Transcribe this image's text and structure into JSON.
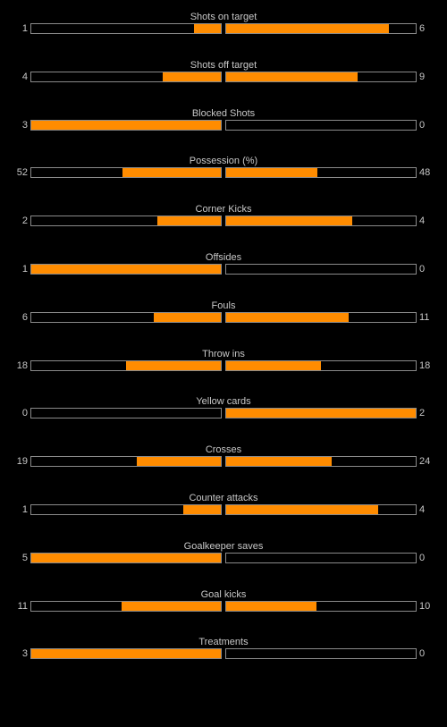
{
  "theme": {
    "background": "#000000",
    "text": "#c8c8c8",
    "bar_border": "#8a8a8a",
    "bar_fill": "#ff8c00"
  },
  "stats": [
    {
      "name": "shots-on-target",
      "label": "Shots on target",
      "home": "1",
      "away": "6",
      "home_share": 0.143,
      "away_share": 0.857
    },
    {
      "name": "shots-off-target",
      "label": "Shots off target",
      "home": "4",
      "away": "9",
      "home_share": 0.308,
      "away_share": 0.692
    },
    {
      "name": "blocked-shots",
      "label": "Blocked Shots",
      "home": "3",
      "away": "0",
      "home_share": 1.0,
      "away_share": 0.0
    },
    {
      "name": "possession",
      "label": "Possession (%)",
      "home": "52",
      "away": "48",
      "home_share": 0.52,
      "away_share": 0.48
    },
    {
      "name": "corner-kicks",
      "label": "Corner Kicks",
      "home": "2",
      "away": "4",
      "home_share": 0.333,
      "away_share": 0.667
    },
    {
      "name": "offsides",
      "label": "Offsides",
      "home": "1",
      "away": "0",
      "home_share": 1.0,
      "away_share": 0.0
    },
    {
      "name": "fouls",
      "label": "Fouls",
      "home": "6",
      "away": "11",
      "home_share": 0.353,
      "away_share": 0.647
    },
    {
      "name": "throw-ins",
      "label": "Throw ins",
      "home": "18",
      "away": "18",
      "home_share": 0.5,
      "away_share": 0.5
    },
    {
      "name": "yellow-cards",
      "label": "Yellow cards",
      "home": "0",
      "away": "2",
      "home_share": 0.0,
      "away_share": 1.0
    },
    {
      "name": "crosses",
      "label": "Crosses",
      "home": "19",
      "away": "24",
      "home_share": 0.442,
      "away_share": 0.558
    },
    {
      "name": "counter-attacks",
      "label": "Counter attacks",
      "home": "1",
      "away": "4",
      "home_share": 0.2,
      "away_share": 0.8
    },
    {
      "name": "goalkeeper-saves",
      "label": "Goalkeeper saves",
      "home": "5",
      "away": "0",
      "home_share": 1.0,
      "away_share": 0.0
    },
    {
      "name": "goal-kicks",
      "label": "Goal kicks",
      "home": "11",
      "away": "10",
      "home_share": 0.524,
      "away_share": 0.476
    },
    {
      "name": "treatments",
      "label": "Treatments",
      "home": "3",
      "away": "0",
      "home_share": 1.0,
      "away_share": 0.0
    }
  ]
}
